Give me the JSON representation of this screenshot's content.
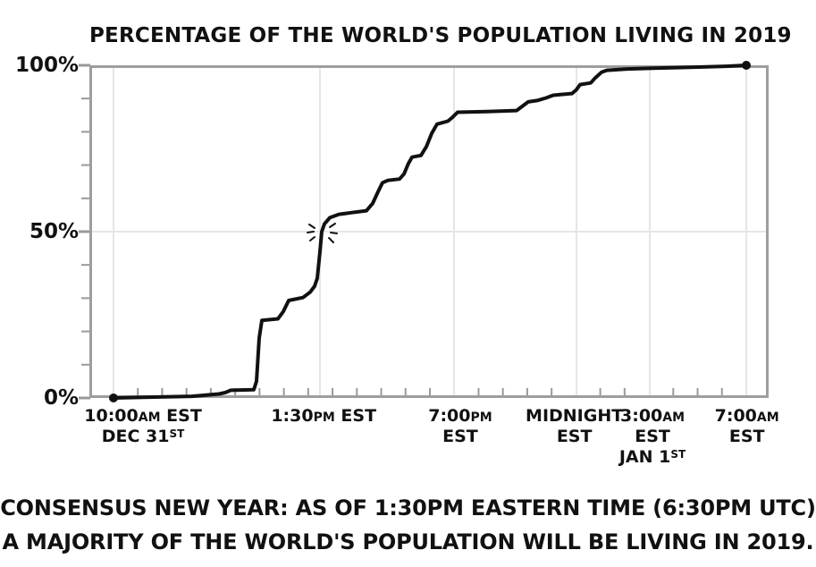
{
  "title": "PERCENTAGE OF THE WORLD'S POPULATION LIVING IN 2019",
  "caption": {
    "line1": "CONSENSUS NEW YEAR: AS OF 1:30PM EASTERN TIME (6:30PM UTC)",
    "line2": "A MAJORITY OF THE WORLD'S POPULATION WILL BE LIVING IN 2019."
  },
  "colors": {
    "ink": "#111111",
    "axis_frame": "#9e9e9e",
    "tick": "#999999",
    "grid": "#e6e6e6",
    "background": "#ffffff"
  },
  "y_axis": {
    "labels": [
      {
        "name": "y-tick-label-100",
        "pct": 100,
        "text": "100%"
      },
      {
        "name": "y-tick-label-50",
        "pct": 50,
        "text": "50%"
      },
      {
        "name": "y-tick-label-0",
        "pct": 0,
        "text": "0%"
      }
    ]
  },
  "x_axis": {
    "labels": [
      {
        "name": "x-tick-label-10am-dec31",
        "xf": 0.079,
        "lines": [
          [
            {
              "t": "10:00"
            },
            {
              "t": "AM",
              "s": "sm"
            },
            {
              "t": " EST"
            }
          ],
          [
            {
              "t": "DEC 31"
            },
            {
              "t": "ST",
              "s": "sup"
            }
          ]
        ]
      },
      {
        "name": "x-tick-label-130pm",
        "xf": 0.345,
        "lines": [
          [
            {
              "t": "1:30"
            },
            {
              "t": "PM",
              "s": "sm"
            },
            {
              "t": " EST"
            }
          ]
        ]
      },
      {
        "name": "x-tick-label-7pm",
        "xf": 0.546,
        "lines": [
          [
            {
              "t": "7:00"
            },
            {
              "t": "PM",
              "s": "sm"
            }
          ],
          [
            {
              "t": "EST"
            }
          ]
        ]
      },
      {
        "name": "x-tick-label-midnight",
        "xf": 0.714,
        "lines": [
          [
            {
              "t": "MIDNIGHT"
            }
          ],
          [
            {
              "t": "EST"
            }
          ]
        ]
      },
      {
        "name": "x-tick-label-3am-jan1",
        "xf": 0.829,
        "lines": [
          [
            {
              "t": "3:00"
            },
            {
              "t": "AM",
              "s": "sm"
            }
          ],
          [
            {
              "t": "EST"
            }
          ],
          [
            {
              "t": "JAN 1"
            },
            {
              "t": "ST",
              "s": "sup"
            }
          ]
        ]
      },
      {
        "name": "x-tick-label-7am",
        "xf": 0.968,
        "lines": [
          [
            {
              "t": "7:00"
            },
            {
              "t": "AM",
              "s": "sm"
            }
          ],
          [
            {
              "t": "EST"
            }
          ]
        ]
      }
    ]
  },
  "chart_data": {
    "type": "line",
    "title": "PERCENTAGE OF THE WORLD'S POPULATION LIVING IN 2019",
    "xlabel": "",
    "ylabel": "",
    "ylim": [
      0,
      100
    ],
    "grid": true,
    "x_tick_labels": [
      "10:00AM EST DEC 31ST",
      "1:30PM EST",
      "7:00PM EST",
      "MIDNIGHT EST",
      "3:00AM EST JAN 1ST",
      "7:00AM EST"
    ],
    "y_tick_labels": [
      "0%",
      "50%",
      "100%"
    ],
    "x_gridlines_xf": [
      0.0355,
      0.3395,
      0.5368,
      0.7171,
      0.825,
      0.9671
    ],
    "y_gridlines_pct": [
      50
    ],
    "x_minor_ticks": {
      "start_xf": 0.0355,
      "end_xf": 0.9671,
      "count": 27
    },
    "y_minor_ticks_pct": [
      10,
      20,
      30,
      40,
      60,
      70,
      80,
      90
    ],
    "series": [
      {
        "name": "percent of world population living in 2019",
        "points": [
          [
            0.0355,
            0
          ],
          [
            0.0789,
            0.2
          ],
          [
            0.1513,
            0.5
          ],
          [
            0.1908,
            1.2
          ],
          [
            0.2,
            1.6
          ],
          [
            0.2079,
            2.3
          ],
          [
            0.2421,
            2.5
          ],
          [
            0.2461,
            5
          ],
          [
            0.25,
            18
          ],
          [
            0.2539,
            23.3
          ],
          [
            0.2776,
            23.8
          ],
          [
            0.2855,
            26
          ],
          [
            0.2934,
            29.3
          ],
          [
            0.3145,
            30.2
          ],
          [
            0.325,
            31.8
          ],
          [
            0.3316,
            33.6
          ],
          [
            0.3355,
            36
          ],
          [
            0.3395,
            44
          ],
          [
            0.3421,
            50
          ],
          [
            0.3461,
            52.3
          ],
          [
            0.3539,
            54.2
          ],
          [
            0.3671,
            55.2
          ],
          [
            0.3855,
            55.7
          ],
          [
            0.4079,
            56.3
          ],
          [
            0.4171,
            58.5
          ],
          [
            0.425,
            62
          ],
          [
            0.4316,
            64.7
          ],
          [
            0.4395,
            65.4
          ],
          [
            0.4566,
            65.8
          ],
          [
            0.4632,
            67.3
          ],
          [
            0.4697,
            70.5
          ],
          [
            0.475,
            72.4
          ],
          [
            0.4882,
            72.9
          ],
          [
            0.4961,
            75.5
          ],
          [
            0.5039,
            79.5
          ],
          [
            0.5118,
            82.3
          ],
          [
            0.5276,
            83.2
          ],
          [
            0.5342,
            84.3
          ],
          [
            0.5421,
            85.9
          ],
          [
            0.5855,
            86.1
          ],
          [
            0.6289,
            86.4
          ],
          [
            0.6368,
            87.6
          ],
          [
            0.6461,
            89
          ],
          [
            0.6592,
            89.4
          ],
          [
            0.6724,
            90.2
          ],
          [
            0.6829,
            91
          ],
          [
            0.6987,
            91.3
          ],
          [
            0.7105,
            91.5
          ],
          [
            0.7171,
            92.7
          ],
          [
            0.7224,
            94.2
          ],
          [
            0.7382,
            94.7
          ],
          [
            0.7447,
            96.2
          ],
          [
            0.7539,
            97.9
          ],
          [
            0.7618,
            98.5
          ],
          [
            0.7921,
            98.9
          ],
          [
            0.8303,
            99.1
          ],
          [
            0.8842,
            99.4
          ],
          [
            0.9368,
            99.7
          ],
          [
            0.9671,
            100
          ]
        ]
      }
    ],
    "endpoint_dots": [
      {
        "xf": 0.0355,
        "pct": 0
      },
      {
        "xf": 0.9671,
        "pct": 100
      }
    ],
    "annotation": {
      "type": "starburst",
      "xf": 0.3421,
      "pct": 50
    }
  }
}
